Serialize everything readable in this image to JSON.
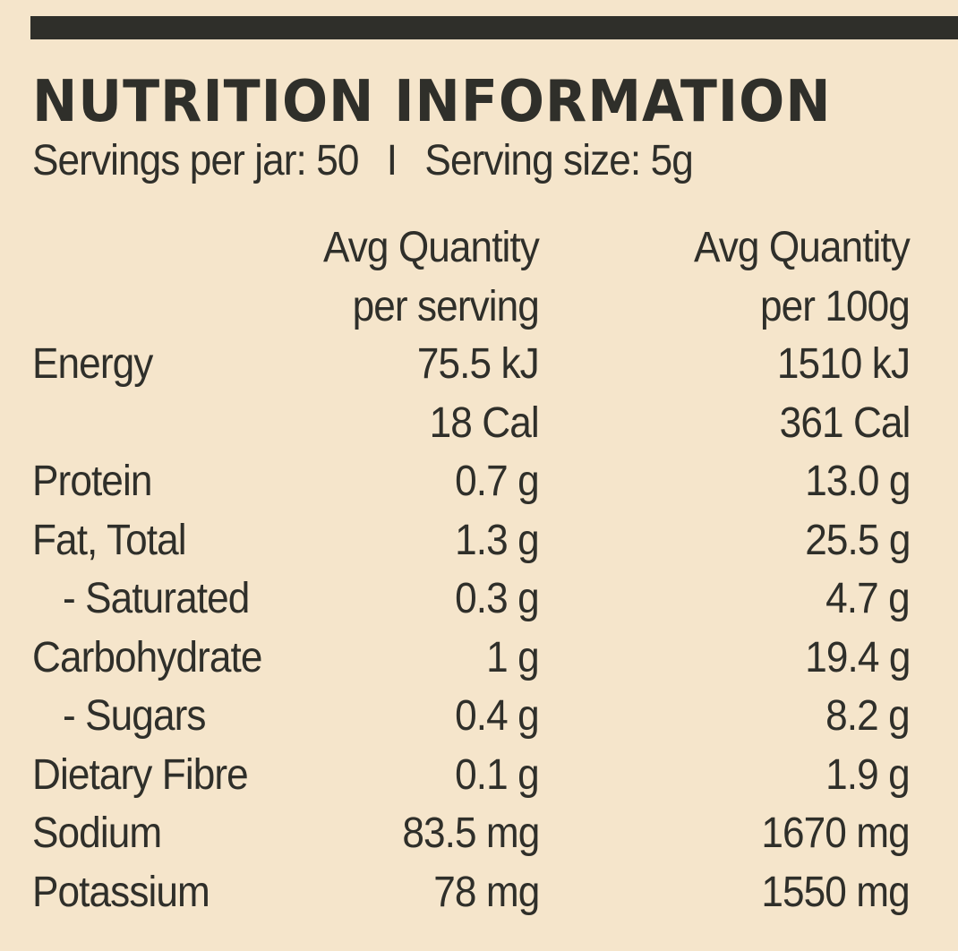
{
  "title": "NUTRITION INFORMATION",
  "servings": {
    "per_jar": "Servings per jar: 50",
    "separator": "I",
    "size": "Serving size: 5g"
  },
  "headers": {
    "per_serving": [
      "Avg Quantity",
      "per serving"
    ],
    "per_100g": [
      "Avg Quantity",
      "per 100g"
    ]
  },
  "rows": [
    {
      "name": "Energy",
      "per_serving": "75.5 kJ",
      "per_100g": "1510 kJ"
    },
    {
      "name": "",
      "per_serving": "18 Cal",
      "per_100g": "361 Cal"
    },
    {
      "name": "Protein",
      "per_serving": "0.7 g",
      "per_100g": "13.0 g"
    },
    {
      "name": "Fat, Total",
      "per_serving": "1.3 g",
      "per_100g": "25.5 g"
    },
    {
      "name": "- Saturated",
      "per_serving": "0.3 g",
      "per_100g": "4.7 g"
    },
    {
      "name": "Carbohydrate",
      "per_serving": "1 g",
      "per_100g": "19.4 g"
    },
    {
      "name": "- Sugars",
      "per_serving": "0.4 g",
      "per_100g": "8.2 g"
    },
    {
      "name": "Dietary Fibre",
      "per_serving": "0.1 g",
      "per_100g": "1.9 g"
    },
    {
      "name": "Sodium",
      "per_serving": "83.5 mg",
      "per_100g": "1670 mg"
    },
    {
      "name": "Potassium",
      "per_serving": "78 mg",
      "per_100g": "1550 mg"
    }
  ]
}
